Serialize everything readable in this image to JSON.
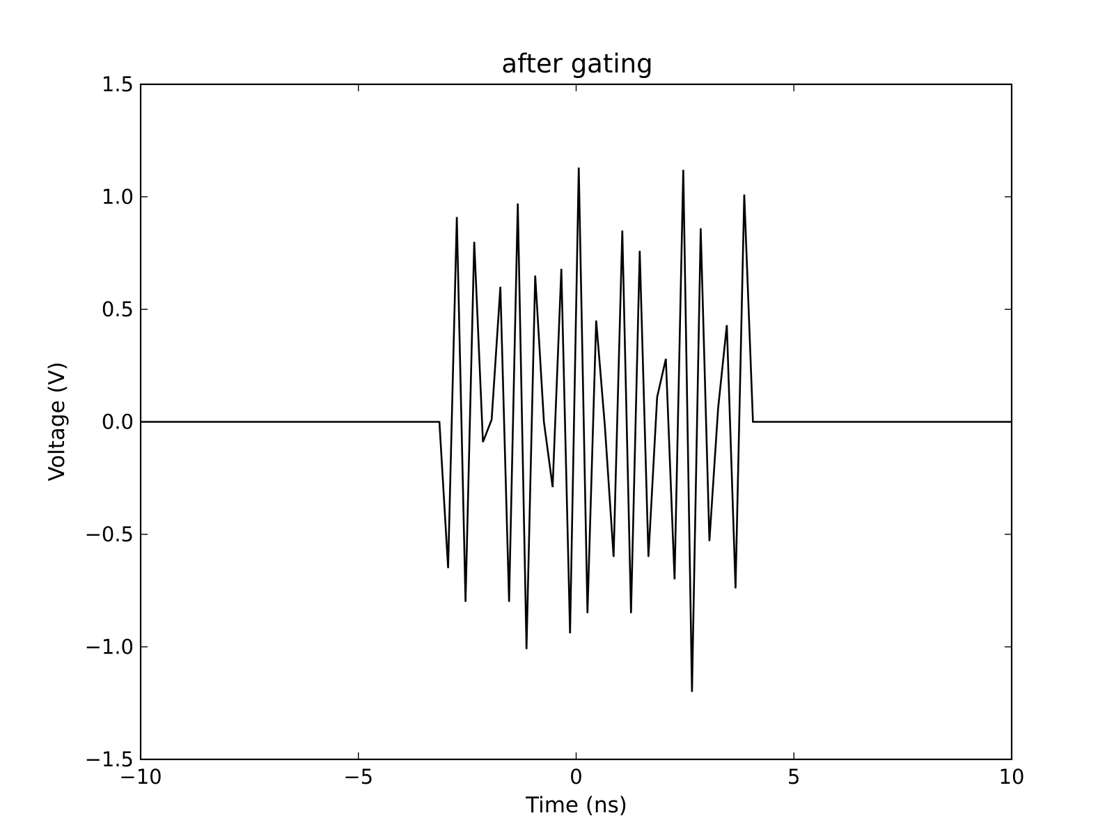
{
  "chart_data": {
    "type": "line",
    "title": "after gating",
    "xlabel": "Time (ns)",
    "ylabel": "Voltage (V)",
    "xlim": [
      -10,
      10
    ],
    "ylim": [
      -1.5,
      1.5
    ],
    "xticks": [
      -10,
      -5,
      0,
      5,
      10
    ],
    "xtick_labels": [
      "−10",
      "−5",
      "0",
      "5",
      "10"
    ],
    "yticks": [
      1.5,
      1.0,
      0.5,
      0.0,
      -0.5,
      -1.0,
      -1.5
    ],
    "ytick_labels": [
      "1.5",
      "1.0",
      "0.5",
      "0.0",
      "−0.5",
      "−1.0",
      "−1.5"
    ],
    "grid": false,
    "legend": "none",
    "line_color": "#000000",
    "series": [
      {
        "x": [
          -10,
          -3.14,
          -2.94,
          -2.74,
          -2.54,
          -2.34,
          -2.14,
          -1.94,
          -1.74,
          -1.54,
          -1.34,
          -1.14,
          -0.94,
          -0.74,
          -0.54,
          -0.34,
          -0.14,
          0.06,
          0.26,
          0.46,
          0.66,
          0.86,
          1.06,
          1.26,
          1.46,
          1.66,
          1.86,
          2.06,
          2.26,
          2.46,
          2.66,
          2.86,
          3.06,
          3.26,
          3.46,
          3.66,
          3.86,
          4.06,
          10
        ],
        "y": [
          0,
          0,
          -0.65,
          0.91,
          -0.8,
          0.8,
          -0.09,
          0.01,
          0.6,
          -0.8,
          0.97,
          -1.01,
          0.65,
          0.0,
          -0.29,
          0.68,
          -0.94,
          1.13,
          -0.85,
          0.45,
          -0.02,
          -0.6,
          0.85,
          -0.85,
          0.76,
          -0.6,
          0.11,
          0.28,
          -0.7,
          1.12,
          -1.2,
          0.86,
          -0.53,
          0.06,
          0.43,
          -0.74,
          1.01,
          0.0,
          0
        ]
      }
    ]
  }
}
